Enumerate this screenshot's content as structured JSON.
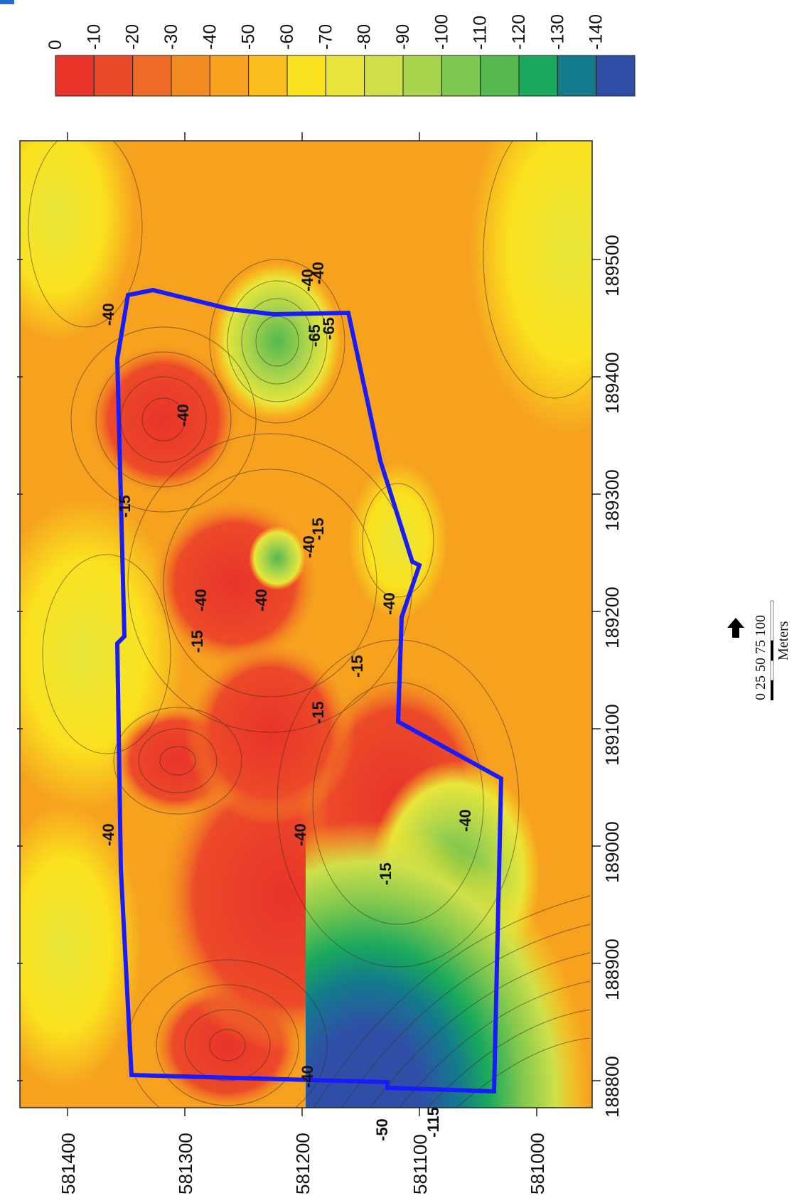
{
  "legend": {
    "labels": [
      "0",
      "-10",
      "-20",
      "-30",
      "-40",
      "-50",
      "-60",
      "-70",
      "-80",
      "-90",
      "-100",
      "-110",
      "-120",
      "-130",
      "-140"
    ],
    "colors": [
      "#e8332a",
      "#ea4a29",
      "#ee6a26",
      "#f28a22",
      "#f6a21f",
      "#f9bf1e",
      "#fbe21f",
      "#e8e63a",
      "#cfe04b",
      "#a9d44d",
      "#7fc74e",
      "#54b84f",
      "#1aa95c",
      "#137a8c",
      "#2f4fa7"
    ]
  },
  "map": {
    "x_axis_ticks": [
      "188800",
      "188900",
      "189000",
      "189100",
      "189200",
      "189300",
      "189400",
      "189500"
    ],
    "y_axis_ticks": [
      "581000",
      "581100",
      "581200",
      "581300",
      "581400"
    ],
    "contour_labels": [
      "-40",
      "-40",
      "-40",
      "-15",
      "-15",
      "-40",
      "-40",
      "-15",
      "-40",
      "-15",
      "-15",
      "-40",
      "-40",
      "-40",
      "-40",
      "-15",
      "-65",
      "-40",
      "-50",
      "-115",
      "-40",
      "-65"
    ],
    "boundary_color": "#1a1aff"
  },
  "scale_bar": {
    "ticks": [
      "0",
      "25",
      "50",
      "75",
      "100"
    ],
    "unit": "Meters"
  },
  "north_arrow": "north-arrow-icon"
}
